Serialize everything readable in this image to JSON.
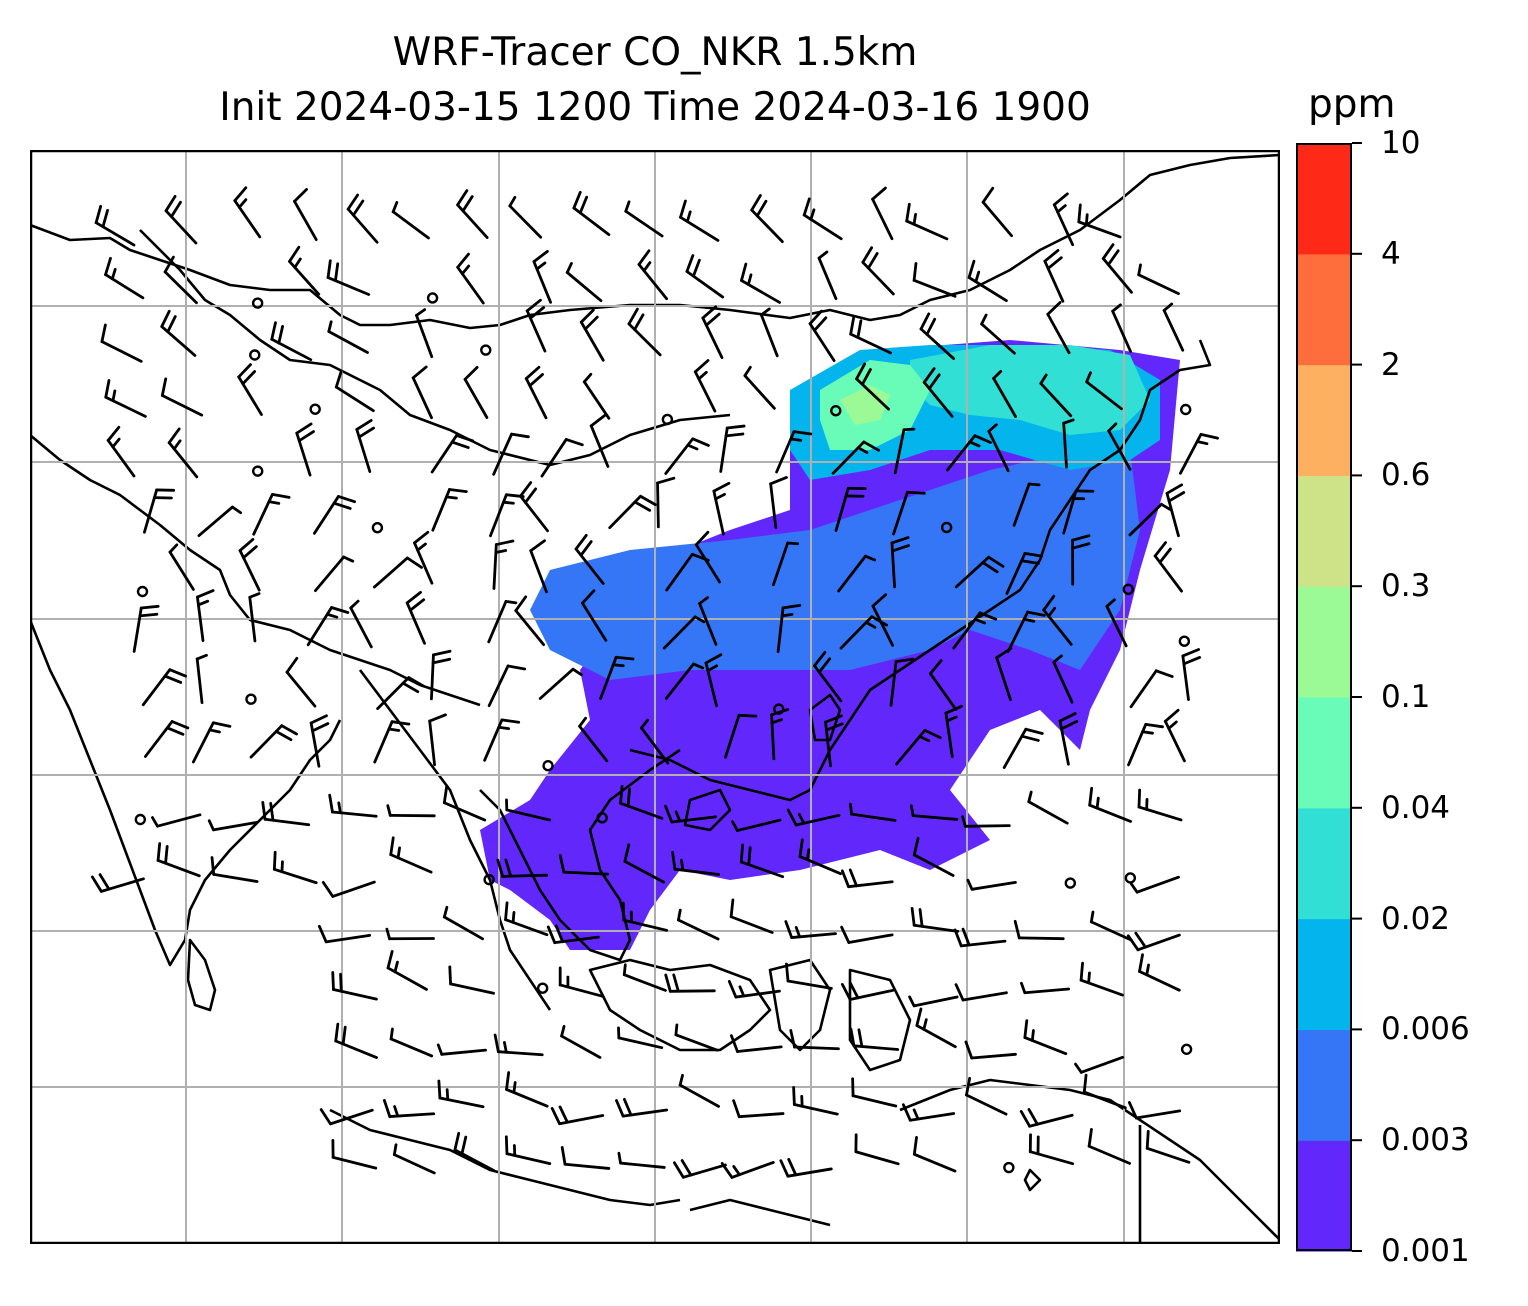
{
  "title": {
    "line1": "WRF-Tracer CO_NKR 1.5km",
    "line2": "Init 2024-03-15 1200 Time 2024-03-16 1900"
  },
  "colorbar": {
    "units": "ppm",
    "ticks": [
      "0.001",
      "0.003",
      "0.006",
      "0.02",
      "0.04",
      "0.1",
      "0.3",
      "0.6",
      "2",
      "4",
      "10"
    ],
    "colors": [
      "#6228fb",
      "#3476f5",
      "#04b4ec",
      "#32dfd4",
      "#68fcb8",
      "#9cfa96",
      "#cee387",
      "#fdb160",
      "#fe6e3c",
      "#fe2a17"
    ]
  },
  "map": {
    "tracer": "CO_NKR",
    "level": "1.5km",
    "overlay": "wind barbs",
    "plume_levels": [
      {
        "band": "0.001-0.003",
        "color": "#6228fb"
      },
      {
        "band": "0.003-0.006",
        "color": "#3476f5"
      },
      {
        "band": "0.006-0.02",
        "color": "#04b4ec"
      },
      {
        "band": "0.02-0.04",
        "color": "#32dfd4"
      },
      {
        "band": "0.04-0.1",
        "color": "#68fcb8"
      },
      {
        "band": "0.1-0.3",
        "color": "#9cfa96"
      }
    ]
  }
}
